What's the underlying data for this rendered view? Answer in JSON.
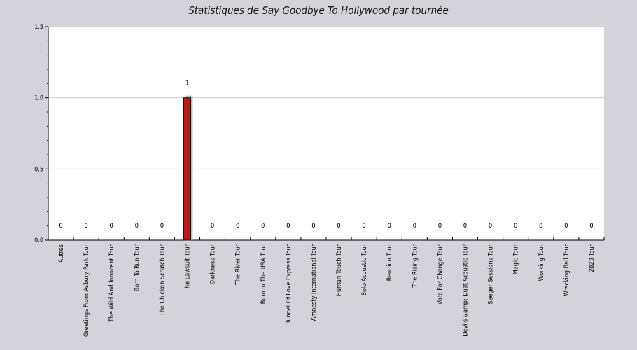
{
  "chart_data": {
    "type": "bar",
    "title": "Statistiques de Say Goodbye To Hollywood par tournée",
    "xlabel": "",
    "ylabel": "",
    "ylim": [
      0,
      1.5
    ],
    "yticks": [
      "0.0",
      "0.5",
      "1.0",
      "1.5"
    ],
    "grid": true,
    "legend": "none",
    "categories": [
      "Autres",
      "Greetings From Asbury Park Tour",
      "The Wild And Innocent Tour",
      "Born To Run Tour",
      "The Chicken Scratch Tour",
      "The Lawsuit Tour",
      "Darkness Tour",
      "The River Tour",
      "Born In The USA Tour",
      "Tunnel Of Love Express Tour",
      "Amnesty International Tour",
      "Human Touch Tour",
      "Solo Acoustic Tour",
      "Reunion Tour",
      "The Rising Tour",
      "Vote For Change Tour",
      "Devils &amp; Dust Acoustic Tour",
      "Seeger Sessions Tour",
      "Magic Tour",
      "Working Tour",
      "Wrecking Ball Tour",
      "2023 Tour"
    ],
    "values": [
      0,
      0,
      0,
      0,
      0,
      1,
      0,
      0,
      0,
      0,
      0,
      0,
      0,
      0,
      0,
      0,
      0,
      0,
      0,
      0,
      0,
      0
    ],
    "value_labels": [
      "0",
      "0",
      "0",
      "0",
      "0",
      "1",
      "0",
      "0",
      "0",
      "0",
      "0",
      "0",
      "0",
      "0",
      "0",
      "0",
      "0",
      "0",
      "0",
      "0",
      "0",
      "0"
    ],
    "colors": {
      "bar": "#b01e1e",
      "bar_stroke": "#2b0a0a",
      "plot_bg": "#ffffff",
      "page_bg": "#d4d3d9",
      "grid": "#cccccc"
    }
  }
}
